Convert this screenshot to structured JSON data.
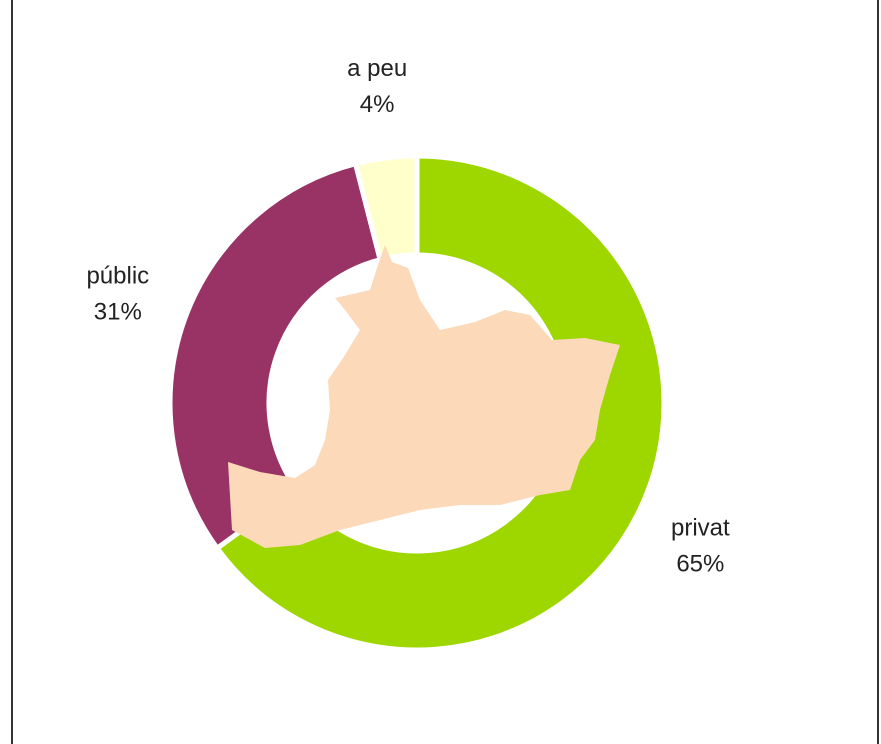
{
  "chart_data": {
    "type": "donut",
    "categories": [
      "privat",
      "públic",
      "a peu"
    ],
    "values": [
      65,
      31,
      4
    ],
    "value_labels": [
      "65%",
      "31%",
      "4%"
    ],
    "colors": [
      "#9ed600",
      "#993366",
      "#ffffcc"
    ]
  }
}
